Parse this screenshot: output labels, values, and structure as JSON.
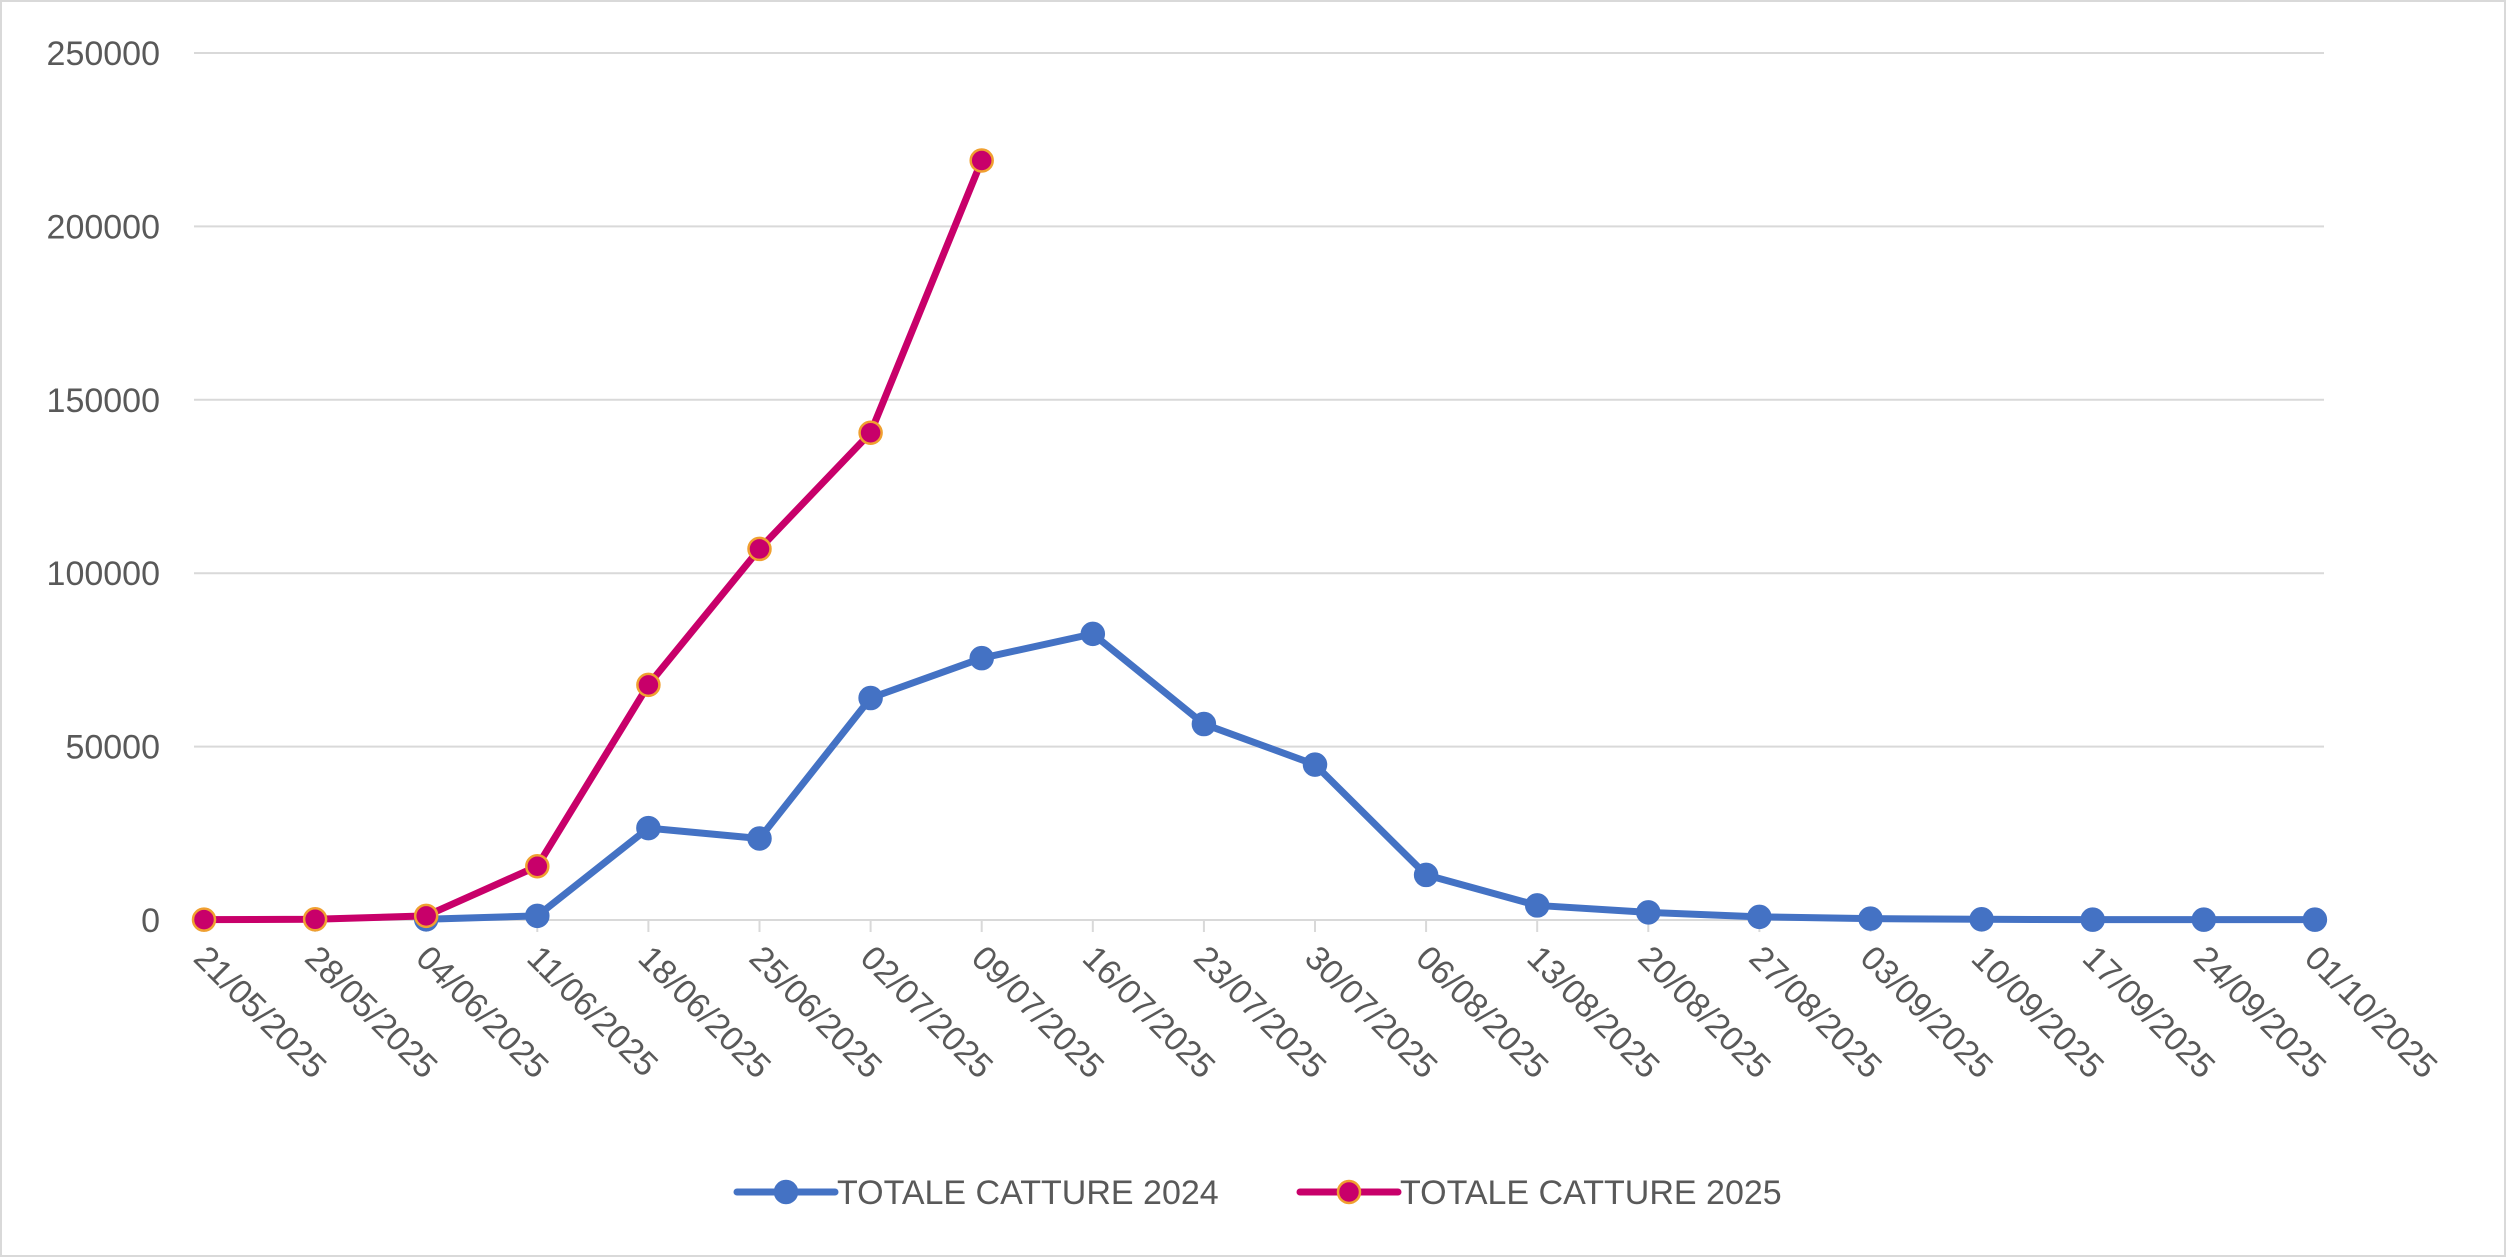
{
  "chart_data": {
    "type": "line",
    "title": "",
    "xlabel": "",
    "ylabel": "",
    "ylim": [
      0,
      250000
    ],
    "y_ticks": [
      "0",
      "50000",
      "100000",
      "150000",
      "200000",
      "250000"
    ],
    "y_tick_values": [
      0,
      50000,
      100000,
      150000,
      200000,
      250000
    ],
    "grid": true,
    "legend_position": "bottom",
    "categories": [
      "21/05/2025",
      "28/05/2025",
      "04/06/2025",
      "11/06/2025",
      "18/06/2025",
      "25/06/2025",
      "02/07/2025",
      "09/07/2025",
      "16/07/2025",
      "23/07/2025",
      "30/07/2025",
      "06/08/2025",
      "13/08/2025",
      "20/08/2025",
      "27/08/2025",
      "03/09/2025",
      "10/09/2025",
      "17/09/2025",
      "24/09/2025",
      "01/10/2025"
    ],
    "series": [
      {
        "name": "TOTALE CATTURE 2024",
        "color": "#4472c4",
        "marker_fill": "#4472c4",
        "marker_stroke": "#4472c4",
        "values": [
          null,
          null,
          200,
          1200,
          26500,
          23500,
          64000,
          75500,
          82500,
          56500,
          44800,
          13000,
          4200,
          2200,
          900,
          400,
          200,
          100,
          100,
          100
        ]
      },
      {
        "name": "TOTALE CATTURE 2025",
        "color": "#c8006a",
        "marker_fill": "#c8006a",
        "marker_stroke": "#f0a030",
        "values": [
          100,
          200,
          1200,
          15500,
          67800,
          107000,
          140500,
          219000,
          null,
          null,
          null,
          null,
          null,
          null,
          null,
          null,
          null,
          null,
          null,
          null
        ]
      }
    ]
  }
}
